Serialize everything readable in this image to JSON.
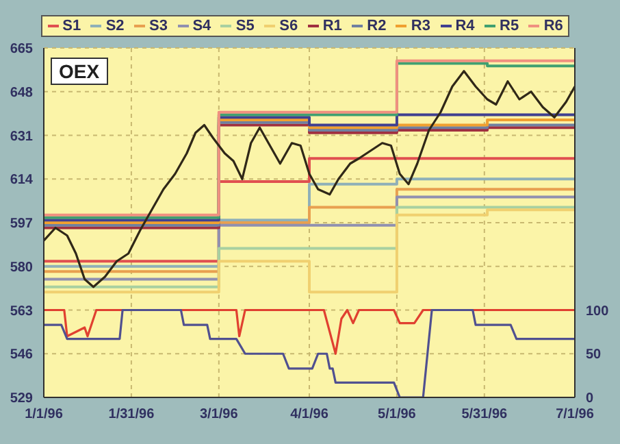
{
  "chart_data": {
    "type": "line",
    "title": "OEX",
    "legend": "top",
    "grid": true,
    "xlim": [
      "1996-01-01",
      "1996-07-01"
    ],
    "xticks": [
      {
        "value": "1996-01-01",
        "label": "1/1/96"
      },
      {
        "value": "1996-01-31",
        "label": "1/31/96"
      },
      {
        "value": "1996-03-01",
        "label": "3/1/96"
      },
      {
        "value": "1996-04-01",
        "label": "4/1/96"
      },
      {
        "value": "1996-05-01",
        "label": "5/1/96"
      },
      {
        "value": "1996-05-31",
        "label": "5/31/96"
      },
      {
        "value": "1996-07-01",
        "label": "7/1/96"
      }
    ],
    "ylim": [
      529,
      665
    ],
    "yticks": [
      529,
      546,
      563,
      580,
      597,
      614,
      631,
      648,
      665
    ],
    "y2lim": [
      0,
      400
    ],
    "y2ticks": [
      0,
      50,
      100
    ],
    "x": [
      "1996-01-01",
      "1996-02-01",
      "1996-03-01",
      "1996-04-01",
      "1996-05-01",
      "1996-06-01",
      "1996-07-01"
    ],
    "series": [
      {
        "name": "S1",
        "type": "step",
        "color": "#e05050",
        "values": [
          582,
          582,
          613,
          622,
          622,
          622,
          622
        ]
      },
      {
        "name": "S2",
        "type": "step",
        "color": "#8fb0b8",
        "values": [
          580,
          580,
          598,
          612,
          614,
          614,
          614
        ]
      },
      {
        "name": "S3",
        "type": "step",
        "color": "#e8a050",
        "values": [
          578,
          578,
          597,
          603,
          610,
          610,
          610
        ]
      },
      {
        "name": "S4",
        "type": "step",
        "color": "#9090b0",
        "values": [
          575,
          575,
          596,
          596,
          607,
          607,
          607
        ]
      },
      {
        "name": "S5",
        "type": "step",
        "color": "#a8d0a0",
        "values": [
          572,
          572,
          587,
          587,
          603,
          603,
          603
        ]
      },
      {
        "name": "S6",
        "type": "step",
        "color": "#f0d070",
        "values": [
          570,
          570,
          582,
          570,
          600,
          602,
          602
        ]
      },
      {
        "name": "R1",
        "type": "step",
        "color": "#a03040",
        "values": [
          595,
          595,
          635,
          632,
          633,
          634,
          634
        ]
      },
      {
        "name": "R2",
        "type": "step",
        "color": "#7080a0",
        "values": [
          596,
          596,
          636,
          633,
          634,
          635,
          635
        ]
      },
      {
        "name": "R3",
        "type": "step",
        "color": "#f0a030",
        "values": [
          597,
          597,
          637,
          634,
          635,
          637,
          637
        ]
      },
      {
        "name": "R4",
        "type": "step",
        "color": "#404090",
        "values": [
          598,
          598,
          638,
          635,
          639,
          639,
          639
        ]
      },
      {
        "name": "R5",
        "type": "step",
        "color": "#40a070",
        "values": [
          599,
          599,
          639,
          639,
          659,
          658,
          658
        ]
      },
      {
        "name": "R6",
        "type": "step",
        "color": "#f09080",
        "values": [
          600,
          600,
          640,
          640,
          660,
          660,
          660
        ]
      },
      {
        "color": "#302818",
        "x": [
          "1996-01-01",
          "1996-01-05",
          "1996-01-09",
          "1996-01-12",
          "1996-01-15",
          "1996-01-18",
          "1996-01-22",
          "1996-01-26",
          "1996-01-30",
          "1996-02-03",
          "1996-02-07",
          "1996-02-11",
          "1996-02-15",
          "1996-02-19",
          "1996-02-22",
          "1996-02-25",
          "1996-02-28",
          "1996-03-03",
          "1996-03-06",
          "1996-03-09",
          "1996-03-12",
          "1996-03-15",
          "1996-03-19",
          "1996-03-22",
          "1996-03-26",
          "1996-03-29",
          "1996-04-01",
          "1996-04-04",
          "1996-04-08",
          "1996-04-11",
          "1996-04-15",
          "1996-04-18",
          "1996-04-22",
          "1996-04-26",
          "1996-04-29",
          "1996-05-02",
          "1996-05-05",
          "1996-05-08",
          "1996-05-12",
          "1996-05-16",
          "1996-05-20",
          "1996-05-24",
          "1996-05-28",
          "1996-06-01",
          "1996-06-04",
          "1996-06-08",
          "1996-06-12",
          "1996-06-16",
          "1996-06-20",
          "1996-06-24",
          "1996-06-28",
          "1996-07-01"
        ],
        "values": [
          590,
          595,
          592,
          585,
          575,
          572,
          576,
          582,
          585,
          594,
          602,
          610,
          616,
          624,
          632,
          635,
          630,
          624,
          621,
          614,
          628,
          634,
          626,
          620,
          628,
          627,
          616,
          610,
          608,
          614,
          620,
          622,
          625,
          628,
          627,
          616,
          612,
          620,
          633,
          640,
          650,
          656,
          650,
          645,
          643,
          652,
          645,
          648,
          642,
          638,
          644,
          650
        ]
      },
      {
        "type": "line",
        "axis": "y2",
        "color": "#e04030",
        "x": [
          "1996-01-01",
          "1996-01-08",
          "1996-01-09",
          "1996-01-15",
          "1996-01-16",
          "1996-01-19",
          "1996-03-07",
          "1996-03-08",
          "1996-03-10",
          "1996-04-06",
          "1996-04-10",
          "1996-04-12",
          "1996-04-14",
          "1996-04-16",
          "1996-04-18",
          "1996-04-30",
          "1996-05-02",
          "1996-05-07",
          "1996-05-10",
          "1996-07-01"
        ],
        "values": [
          100,
          100,
          70,
          80,
          70,
          100,
          100,
          70,
          100,
          100,
          50,
          90,
          100,
          85,
          100,
          100,
          85,
          85,
          100,
          100
        ]
      },
      {
        "type": "line",
        "axis": "y2",
        "color": "#505090",
        "x": [
          "1996-01-01",
          "1996-01-07",
          "1996-01-09",
          "1996-01-27",
          "1996-01-28",
          "1996-02-17",
          "1996-02-18",
          "1996-02-26",
          "1996-02-27",
          "1996-03-07",
          "1996-03-10",
          "1996-03-23",
          "1996-03-25",
          "1996-04-02",
          "1996-04-04",
          "1996-04-07",
          "1996-04-08",
          "1996-04-09",
          "1996-04-10",
          "1996-04-30",
          "1996-05-02",
          "1996-05-10",
          "1996-05-13",
          "1996-05-27",
          "1996-05-28",
          "1996-06-09",
          "1996-06-11",
          "1996-07-01"
        ],
        "values": [
          83,
          83,
          67,
          67,
          100,
          100,
          83,
          83,
          67,
          67,
          50,
          50,
          33,
          33,
          50,
          50,
          33,
          33,
          17,
          17,
          0,
          0,
          100,
          100,
          83,
          83,
          67,
          67
        ]
      }
    ]
  }
}
